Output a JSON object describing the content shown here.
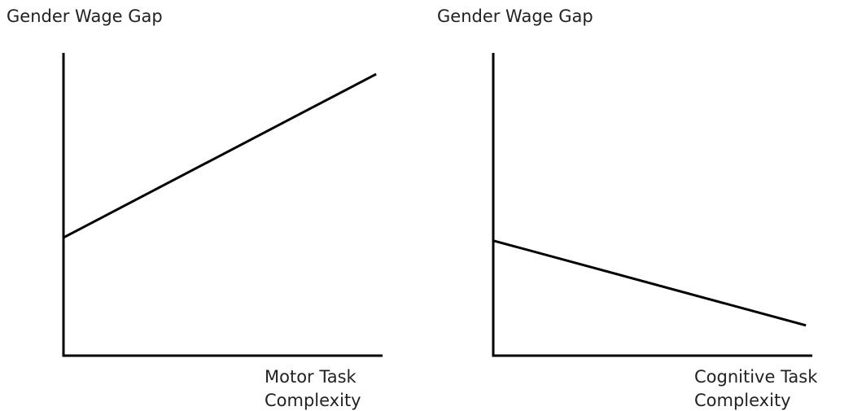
{
  "chart_data": [
    {
      "type": "line",
      "ylabel": "Gender Wage Gap",
      "xlabel": [
        "Motor Task",
        "Complexity"
      ],
      "x": [
        0,
        98
      ],
      "series": [
        {
          "color": "#000000",
          "values": [
            39,
            93
          ]
        }
      ],
      "xlim": [
        0,
        100
      ],
      "ylim": [
        0,
        100
      ]
    },
    {
      "type": "line",
      "ylabel": "Gender Wage Gap",
      "xlabel": [
        "Cognitive Task",
        "Complexity"
      ],
      "x": [
        0,
        98
      ],
      "series": [
        {
          "color": "#000000",
          "values": [
            38,
            10
          ]
        }
      ],
      "xlim": [
        0,
        100
      ],
      "ylim": [
        0,
        100
      ]
    }
  ]
}
